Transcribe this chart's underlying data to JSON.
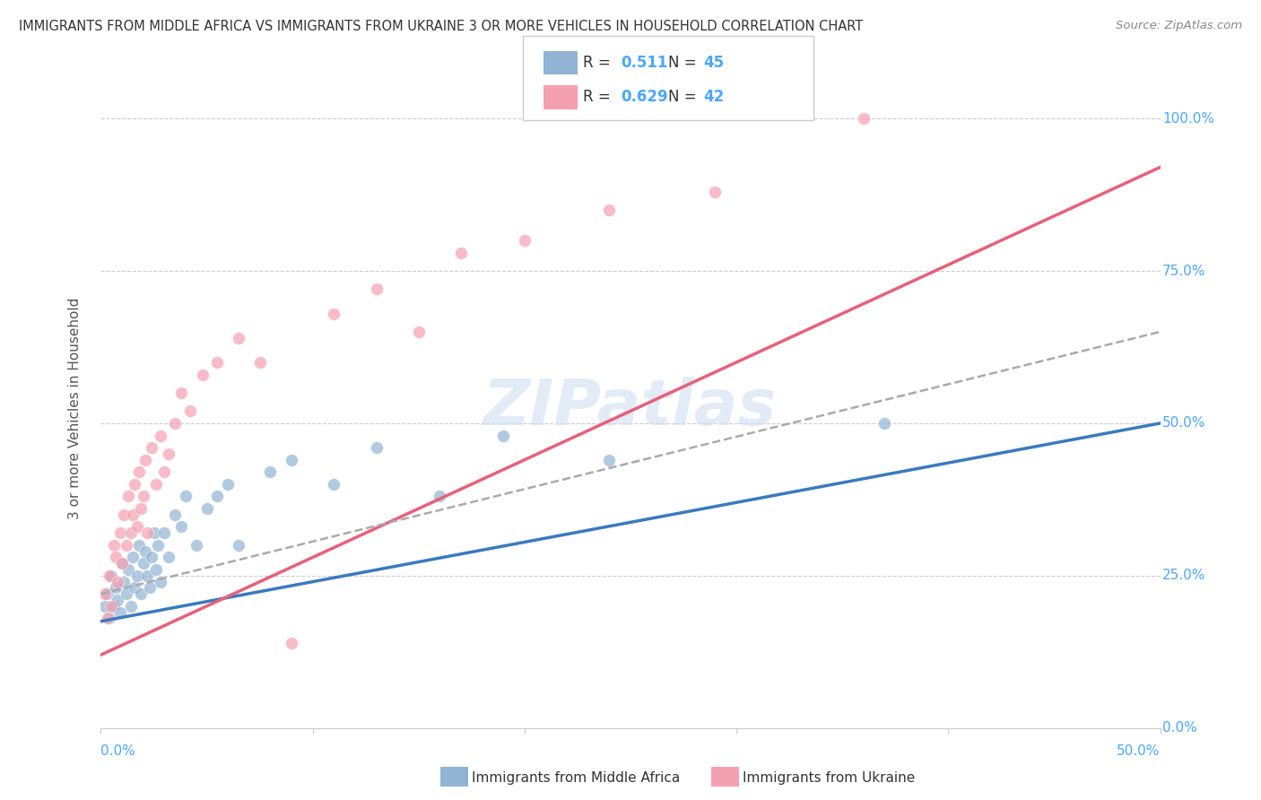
{
  "title": "IMMIGRANTS FROM MIDDLE AFRICA VS IMMIGRANTS FROM UKRAINE 3 OR MORE VEHICLES IN HOUSEHOLD CORRELATION CHART",
  "source": "Source: ZipAtlas.com",
  "ylabel": "3 or more Vehicles in Household",
  "watermark": "ZIPatlas",
  "legend_blue_r": "R = ",
  "legend_blue_r_val": "0.511",
  "legend_blue_n": "N = ",
  "legend_blue_n_val": "45",
  "legend_pink_r": "R = ",
  "legend_pink_r_val": "0.629",
  "legend_pink_n": "N = ",
  "legend_pink_n_val": "42",
  "blue_color": "#92b4d4",
  "pink_color": "#f4a0b0",
  "blue_line_color": "#3a7abf",
  "pink_line_color": "#e8607a",
  "dashed_line_color": "#aaaaaa",
  "background_color": "#ffffff",
  "grid_color": "#cccccc",
  "title_color": "#333333",
  "axis_label_color": "#4da6ff",
  "xlim": [
    0.0,
    0.5
  ],
  "ylim": [
    0.0,
    1.05
  ],
  "blue_scatter_x": [
    0.002,
    0.003,
    0.004,
    0.005,
    0.006,
    0.007,
    0.008,
    0.009,
    0.01,
    0.011,
    0.012,
    0.013,
    0.014,
    0.015,
    0.016,
    0.017,
    0.018,
    0.019,
    0.02,
    0.021,
    0.022,
    0.023,
    0.024,
    0.025,
    0.026,
    0.027,
    0.028,
    0.03,
    0.032,
    0.035,
    0.038,
    0.04,
    0.045,
    0.05,
    0.055,
    0.06,
    0.065,
    0.08,
    0.09,
    0.11,
    0.13,
    0.16,
    0.19,
    0.24,
    0.37
  ],
  "blue_scatter_y": [
    0.2,
    0.22,
    0.18,
    0.25,
    0.2,
    0.23,
    0.21,
    0.19,
    0.27,
    0.24,
    0.22,
    0.26,
    0.2,
    0.28,
    0.23,
    0.25,
    0.3,
    0.22,
    0.27,
    0.29,
    0.25,
    0.23,
    0.28,
    0.32,
    0.26,
    0.3,
    0.24,
    0.32,
    0.28,
    0.35,
    0.33,
    0.38,
    0.3,
    0.36,
    0.38,
    0.4,
    0.3,
    0.42,
    0.44,
    0.4,
    0.46,
    0.38,
    0.48,
    0.44,
    0.5
  ],
  "pink_scatter_x": [
    0.002,
    0.003,
    0.004,
    0.005,
    0.006,
    0.007,
    0.008,
    0.009,
    0.01,
    0.011,
    0.012,
    0.013,
    0.014,
    0.015,
    0.016,
    0.017,
    0.018,
    0.019,
    0.02,
    0.021,
    0.022,
    0.024,
    0.026,
    0.028,
    0.03,
    0.032,
    0.035,
    0.038,
    0.042,
    0.048,
    0.055,
    0.065,
    0.075,
    0.09,
    0.11,
    0.13,
    0.15,
    0.17,
    0.2,
    0.24,
    0.29,
    0.36
  ],
  "pink_scatter_y": [
    0.22,
    0.18,
    0.25,
    0.2,
    0.3,
    0.28,
    0.24,
    0.32,
    0.27,
    0.35,
    0.3,
    0.38,
    0.32,
    0.35,
    0.4,
    0.33,
    0.42,
    0.36,
    0.38,
    0.44,
    0.32,
    0.46,
    0.4,
    0.48,
    0.42,
    0.45,
    0.5,
    0.55,
    0.52,
    0.58,
    0.6,
    0.64,
    0.6,
    0.14,
    0.68,
    0.72,
    0.65,
    0.78,
    0.8,
    0.85,
    0.88,
    1.0
  ],
  "blue_line_x": [
    0.0,
    0.5
  ],
  "blue_line_y": [
    0.175,
    0.5
  ],
  "pink_line_x": [
    0.0,
    0.5
  ],
  "pink_line_y": [
    0.12,
    0.92
  ],
  "dashed_line_x": [
    0.0,
    0.5
  ],
  "dashed_line_y": [
    0.22,
    0.65
  ],
  "ytick_vals": [
    0.0,
    0.25,
    0.5,
    0.75,
    1.0
  ],
  "ytick_labels": [
    "0.0%",
    "25.0%",
    "50.0%",
    "75.0%",
    "100.0%"
  ]
}
